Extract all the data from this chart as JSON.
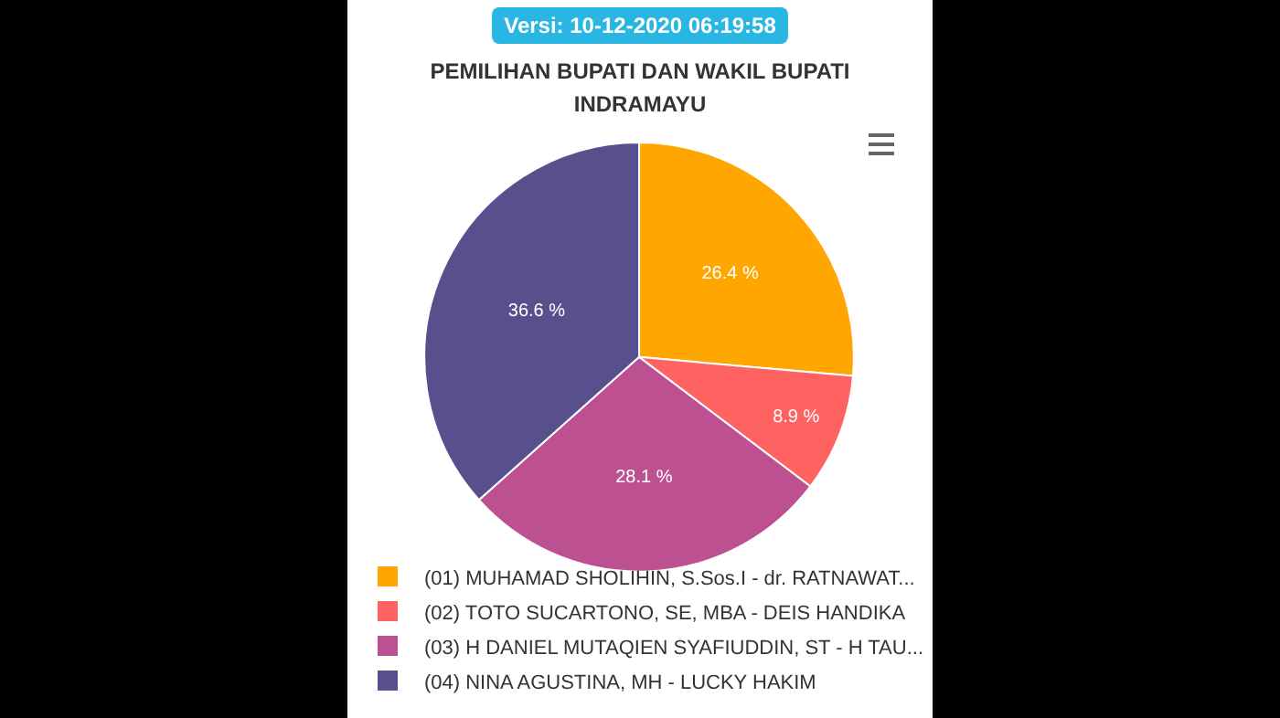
{
  "chart_data": {
    "type": "pie",
    "title": "PEMILIHAN BUPATI DAN WAKIL BUPATI INDRAMAYU",
    "annotations": [
      "Versi: 10-12-2020 06:19:58"
    ],
    "categories": [
      "(01) MUHAMAD SHOLIHIN, S.Sos.I - dr. RATNAWAT...",
      "(02) TOTO SUCARTONO, SE, MBA - DEIS HANDIKA",
      "(03) H DANIEL MUTAQIEN SYAFIUDDIN, ST - H TAU...",
      "(04) NINA AGUSTINA, MH - LUCKY HAKIM"
    ],
    "values": [
      26.4,
      8.9,
      28.1,
      36.6
    ],
    "value_labels": [
      "26.4 %",
      "8.9 %",
      "28.1 %",
      "36.6 %"
    ],
    "colors": [
      "#ffa600",
      "#ff6361",
      "#bc5090",
      "#58508d"
    ],
    "legend": "bottom"
  }
}
